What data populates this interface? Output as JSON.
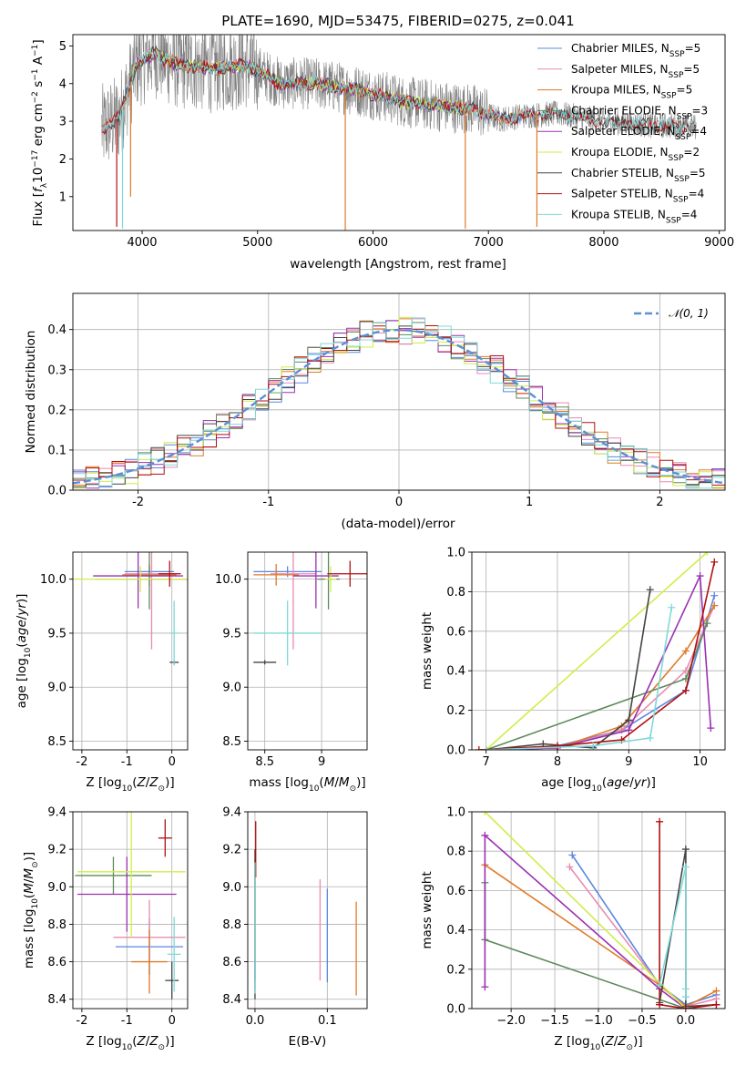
{
  "page_title": "PLATE=1690, MJD=53475, FIBERID=0275, z=0.041",
  "colors": {
    "Chabrier MILES": "#5b87e0",
    "Salpeter MILES": "#e88bb2",
    "Kroupa MILES": "#e07a2a",
    "Chabrier ELODIE": "#5d8a5d",
    "Salpeter ELODIE": "#9a30b0",
    "Kroupa ELODIE": "#cfee4a",
    "Chabrier STELIB": "#444444",
    "Salpeter STELIB": "#b01010",
    "Kroupa STELIB": "#7fd9d9",
    "data": "#808080",
    "normal": "#5b8fd8"
  },
  "chart_data": [
    {
      "id": "spectrum",
      "type": "line",
      "title": "PLATE=1690, MJD=53475, FIBERID=0275, z=0.041",
      "xlabel": "wavelength [Angstrom, rest frame]",
      "ylabel": "Flux [f_λ 10^-17 erg cm^-2 s^-1 A^-1]",
      "xlim": [
        3400,
        9050
      ],
      "ylim": [
        0.1,
        5.3
      ],
      "xticks": [
        "4000",
        "5000",
        "6000",
        "7000",
        "8000",
        "9000"
      ],
      "yticks": [
        "1",
        "2",
        "3",
        "4",
        "5"
      ],
      "grid": false,
      "legend_position": "top-right",
      "legend": [
        {
          "name": "Chabrier MILES, N_SSP=5",
          "base": "Chabrier MILES, N",
          "sub": "SSP",
          "tail": "=5"
        },
        {
          "name": "Salpeter MILES, N_SSP=5",
          "base": "Salpeter MILES, N",
          "sub": "SSP",
          "tail": "=5"
        },
        {
          "name": "Kroupa MILES, N_SSP=5",
          "base": "Kroupa MILES, N",
          "sub": "SSP",
          "tail": "=5"
        },
        {
          "name": "Chabrier ELODIE, N_SSP=3",
          "base": "Chabrier ELODIE, N",
          "sub": "SSP",
          "tail": "=3"
        },
        {
          "name": "Salpeter ELODIE, N_SSP=4",
          "base": "Salpeter ELODIE, N",
          "sub": "SSP",
          "tail": "=4"
        },
        {
          "name": "Kroupa ELODIE, N_SSP=2",
          "base": "Kroupa ELODIE, N",
          "sub": "SSP",
          "tail": "=2"
        },
        {
          "name": "Chabrier STELIB, N_SSP=5",
          "base": "Chabrier STELIB, N",
          "sub": "SSP",
          "tail": "=5"
        },
        {
          "name": "Salpeter STELIB, N_SSP=4",
          "base": "Salpeter STELIB, N",
          "sub": "SSP",
          "tail": "=4"
        },
        {
          "name": "Kroupa STELIB, N_SSP=4",
          "base": "Kroupa STELIB, N",
          "sub": "SSP",
          "tail": "=4"
        }
      ],
      "continuum": [
        [
          3650,
          2.8
        ],
        [
          3800,
          3.1
        ],
        [
          3950,
          4.5
        ],
        [
          4100,
          4.8
        ],
        [
          4300,
          4.5
        ],
        [
          4600,
          4.4
        ],
        [
          4900,
          4.5
        ],
        [
          5200,
          4.0
        ],
        [
          5500,
          4.0
        ],
        [
          5900,
          3.8
        ],
        [
          6300,
          3.5
        ],
        [
          6600,
          3.4
        ],
        [
          6900,
          3.3
        ],
        [
          7100,
          3.05
        ],
        [
          7300,
          3.15
        ],
        [
          7600,
          3.2
        ],
        [
          8000,
          3.0
        ],
        [
          8400,
          2.9
        ],
        [
          8800,
          2.85
        ]
      ],
      "data_range": [
        3650,
        8800
      ],
      "model_ranges": {
        "MILES": [
          3650,
          7420
        ],
        "ELODIE": [
          3900,
          6800
        ],
        "STELIB": [
          3650,
          8800
        ]
      },
      "spikes": [
        {
          "x": 3780,
          "y": 0.2
        },
        {
          "x": 3830,
          "y": 0.15
        },
        {
          "x": 3900,
          "y": 1.0
        },
        {
          "x": 5760,
          "y": 0.1
        },
        {
          "x": 6800,
          "y": 0.15
        },
        {
          "x": 7420,
          "y": 0.2
        }
      ]
    },
    {
      "id": "residuals",
      "type": "histogram",
      "xlabel": "(data-model)/error",
      "ylabel": "Normed distribution",
      "xlim": [
        -2.5,
        2.5
      ],
      "ylim": [
        0,
        0.49
      ],
      "xticks": [
        -2,
        -1,
        0,
        1,
        2
      ],
      "yticks": [
        0.0,
        0.1,
        0.2,
        0.3,
        0.4
      ],
      "grid": true,
      "legend_position": "top-right",
      "legend": [
        {
          "name": "𝒩(0, 1)"
        }
      ],
      "bin_width": 0.1,
      "bin_start": -2.5
    },
    {
      "id": "age_vs_Z",
      "type": "errorbar",
      "xlabel": "Z [log10(Z/Z⊙)]",
      "ylabel": "age [log10(age/yr)]",
      "xlim": [
        -2.2,
        0.35
      ],
      "ylim": [
        8.42,
        10.25
      ],
      "xticks": [
        -2,
        -1,
        0
      ],
      "yticks": [
        8.5,
        9.0,
        9.5,
        10.0
      ],
      "grid": true,
      "points": [
        {
          "model": "Chabrier MILES",
          "x": -0.5,
          "xerr": 0.55,
          "y": 10.07,
          "yerr": 0.05
        },
        {
          "model": "Salpeter MILES",
          "x": -0.45,
          "xerr": 0.6,
          "y": 10.05,
          "yerr": 0.7
        },
        {
          "model": "Kroupa MILES",
          "x": -0.5,
          "xerr": 0.6,
          "y": 10.04,
          "yerr": 0.1
        },
        {
          "model": "Chabrier ELODIE",
          "x": -0.5,
          "xerr": 1.2,
          "y": 10.0,
          "yerr": 0.28
        },
        {
          "model": "Salpeter ELODIE",
          "x": -0.75,
          "xerr": 1.0,
          "y": 10.03,
          "yerr": 0.3
        },
        {
          "model": "Kroupa ELODIE",
          "x": -0.7,
          "xerr": 1.5,
          "y": 10.0,
          "yerr": 0.12
        },
        {
          "model": "Chabrier STELIB",
          "x": 0.05,
          "xerr": 0.1,
          "y": 9.23,
          "yerr": 0.02
        },
        {
          "model": "Salpeter STELIB",
          "x": -0.05,
          "xerr": 0.25,
          "y": 10.05,
          "yerr": 0.12
        },
        {
          "model": "Kroupa STELIB",
          "x": 0.05,
          "xerr": 0.1,
          "y": 9.5,
          "yerr": 0.3
        }
      ]
    },
    {
      "id": "age_vs_mass",
      "type": "errorbar",
      "xlabel": "mass [log10(M/M⊙)]",
      "ylabel": "",
      "xlim": [
        8.35,
        9.4
      ],
      "ylim": [
        8.42,
        10.25
      ],
      "xticks": [
        8.5,
        9.0
      ],
      "yticks": [
        8.5,
        9.0,
        9.5,
        10.0
      ],
      "grid": true,
      "points": [
        {
          "model": "Chabrier MILES",
          "x": 8.7,
          "xerr": 0.3,
          "y": 10.07,
          "yerr": 0.05
        },
        {
          "model": "Salpeter MILES",
          "x": 8.75,
          "xerr": 0.2,
          "y": 10.05,
          "yerr": 0.7
        },
        {
          "model": "Kroupa MILES",
          "x": 8.6,
          "xerr": 0.2,
          "y": 10.04,
          "yerr": 0.1
        },
        {
          "model": "Chabrier ELODIE",
          "x": 9.06,
          "xerr": 0.1,
          "y": 10.0,
          "yerr": 0.28
        },
        {
          "model": "Salpeter ELODIE",
          "x": 8.95,
          "xerr": 0.2,
          "y": 10.03,
          "yerr": 0.3
        },
        {
          "model": "Kroupa ELODIE",
          "x": 9.08,
          "xerr": 0.05,
          "y": 10.0,
          "yerr": 0.12
        },
        {
          "model": "Chabrier STELIB",
          "x": 8.5,
          "xerr": 0.1,
          "y": 9.23,
          "yerr": 0.02
        },
        {
          "model": "Salpeter STELIB",
          "x": 9.25,
          "xerr": 0.2,
          "y": 10.05,
          "yerr": 0.12
        },
        {
          "model": "Kroupa STELIB",
          "x": 8.7,
          "xerr": 0.3,
          "y": 9.5,
          "yerr": 0.3
        }
      ]
    },
    {
      "id": "massweight_vs_age",
      "type": "line",
      "xlabel": "age [log10(age/yr)]",
      "ylabel": "mass weight",
      "xlim": [
        6.8,
        10.35
      ],
      "ylim": [
        0,
        1
      ],
      "xticks": [
        7,
        8,
        9,
        10
      ],
      "yticks": [
        0.0,
        0.2,
        0.4,
        0.6,
        0.8,
        1.0
      ],
      "grid": true,
      "series": [
        {
          "model": "Chabrier MILES",
          "x": [
            7.0,
            8.0,
            8.9,
            9.8,
            10.2
          ],
          "y": [
            0.0,
            0.02,
            0.1,
            0.3,
            0.78
          ]
        },
        {
          "model": "Salpeter MILES",
          "x": [
            7.0,
            8.0,
            8.9,
            9.8,
            10.2
          ],
          "y": [
            0.0,
            0.01,
            0.1,
            0.4,
            0.73
          ]
        },
        {
          "model": "Kroupa MILES",
          "x": [
            7.0,
            8.0,
            8.9,
            9.8,
            10.2
          ],
          "y": [
            0.0,
            0.01,
            0.12,
            0.5,
            0.73
          ]
        },
        {
          "model": "Chabrier ELODIE",
          "x": [
            7.0,
            9.8,
            10.1
          ],
          "y": [
            0.0,
            0.36,
            0.64
          ]
        },
        {
          "model": "Salpeter ELODIE",
          "x": [
            7.0,
            8.0,
            9.0,
            10.0,
            10.15
          ],
          "y": [
            0.0,
            0.01,
            0.1,
            0.88,
            0.11
          ]
        },
        {
          "model": "Kroupa ELODIE",
          "x": [
            7.0,
            10.1
          ],
          "y": [
            0.0,
            1.0
          ]
        },
        {
          "model": "Chabrier STELIB",
          "x": [
            7.0,
            7.8,
            8.5,
            9.0,
            9.3
          ],
          "y": [
            0.0,
            0.03,
            0.01,
            0.15,
            0.81
          ]
        },
        {
          "model": "Salpeter STELIB",
          "x": [
            6.9,
            8.0,
            8.9,
            9.8,
            10.2
          ],
          "y": [
            0.0,
            0.02,
            0.05,
            0.3,
            0.95
          ]
        },
        {
          "model": "Kroupa STELIB",
          "x": [
            7.0,
            8.5,
            9.3,
            9.6
          ],
          "y": [
            0.0,
            0.02,
            0.06,
            0.72
          ]
        }
      ]
    },
    {
      "id": "mass_vs_Z",
      "type": "errorbar",
      "xlabel": "Z [log10(Z/Z⊙)]",
      "ylabel": "mass [log10(M/M⊙)]",
      "xlim": [
        -2.2,
        0.35
      ],
      "ylim": [
        8.35,
        9.4
      ],
      "xticks": [
        -2,
        -1,
        0
      ],
      "yticks": [
        8.4,
        8.6,
        8.8,
        9.0,
        9.2,
        9.4
      ],
      "grid": true,
      "points": [
        {
          "model": "Chabrier MILES",
          "x": -0.5,
          "xerr": 0.75,
          "y": 8.68,
          "yerr": 0.15
        },
        {
          "model": "Salpeter MILES",
          "x": -0.5,
          "xerr": 0.8,
          "y": 8.73,
          "yerr": 0.2
        },
        {
          "model": "Kroupa MILES",
          "x": -0.5,
          "xerr": 0.4,
          "y": 8.6,
          "yerr": 0.17
        },
        {
          "model": "Chabrier ELODIE",
          "x": -1.3,
          "xerr": 0.85,
          "y": 9.06,
          "yerr": 0.1
        },
        {
          "model": "Salpeter ELODIE",
          "x": -1.0,
          "xerr": 1.1,
          "y": 8.96,
          "yerr": 0.2
        },
        {
          "model": "Kroupa ELODIE",
          "x": -0.9,
          "xerr": 1.2,
          "y": 9.08,
          "yerr": 0.35
        },
        {
          "model": "Chabrier STELIB",
          "x": 0.0,
          "xerr": 0.15,
          "y": 8.5,
          "yerr": 0.1
        },
        {
          "model": "Salpeter STELIB",
          "x": -0.15,
          "xerr": 0.15,
          "y": 9.26,
          "yerr": 0.1
        },
        {
          "model": "Kroupa STELIB",
          "x": 0.05,
          "xerr": 0.15,
          "y": 8.64,
          "yerr": 0.2
        }
      ]
    },
    {
      "id": "mass_vs_ebv",
      "type": "errorbar",
      "xlabel": "E(B-V)",
      "ylabel": "",
      "xlim": [
        -0.01,
        0.155
      ],
      "ylim": [
        8.35,
        9.4
      ],
      "xticks": [
        "0.0",
        "0.1"
      ],
      "yticks": [
        8.4,
        8.6,
        8.8,
        9.0,
        9.2,
        9.4
      ],
      "grid": true,
      "points": [
        {
          "model": "Chabrier MILES",
          "x": 0.1,
          "xerr": 0,
          "y": 8.74,
          "yerr": 0.25
        },
        {
          "model": "Salpeter MILES",
          "x": 0.09,
          "xerr": 0,
          "y": 8.77,
          "yerr": 0.27
        },
        {
          "model": "Kroupa MILES",
          "x": 0.14,
          "xerr": 0,
          "y": 8.67,
          "yerr": 0.25
        },
        {
          "model": "Chabrier ELODIE",
          "x": 0.0,
          "xerr": 0,
          "y": 8.8,
          "yerr": 0.35
        },
        {
          "model": "Salpeter ELODIE",
          "x": 0.0,
          "xerr": 0,
          "y": 8.8,
          "yerr": 0.3
        },
        {
          "model": "Kroupa ELODIE",
          "x": 0.0,
          "xerr": 0,
          "y": 8.9,
          "yerr": 0.3
        },
        {
          "model": "Chabrier STELIB",
          "x": 0.0,
          "xerr": 0,
          "y": 8.8,
          "yerr": 0.4
        },
        {
          "model": "Salpeter STELIB",
          "x": 0.001,
          "xerr": 0,
          "y": 9.2,
          "yerr": 0.15
        },
        {
          "model": "Kroupa STELIB",
          "x": 0.0,
          "xerr": 0,
          "y": 8.78,
          "yerr": 0.35
        }
      ]
    },
    {
      "id": "massweight_vs_Z",
      "type": "line",
      "xlabel": "Z [log10(Z/Z⊙)]",
      "ylabel": "mass weight",
      "xlim": [
        -2.45,
        0.45
      ],
      "ylim": [
        0,
        1
      ],
      "xticks": [
        "−2.0",
        "−1.5",
        "−1.0",
        "−0.5",
        "0.0"
      ],
      "xtick_values": [
        -2.0,
        -1.5,
        -1.0,
        -0.5,
        0.0
      ],
      "yticks": [
        0.0,
        0.2,
        0.4,
        0.6,
        0.8,
        1.0
      ],
      "grid": true,
      "series": [
        {
          "model": "Chabrier MILES",
          "x": [
            -1.3,
            -0.3,
            0.0,
            0.35
          ],
          "y": [
            0.78,
            0.12,
            0.02,
            0.07
          ]
        },
        {
          "model": "Salpeter MILES",
          "x": [
            -1.33,
            -0.3,
            0.0,
            0.35
          ],
          "y": [
            0.72,
            0.12,
            0.01,
            0.05
          ]
        },
        {
          "model": "Kroupa MILES",
          "x": [
            -2.3,
            -0.3,
            0.0,
            0.35
          ],
          "y": [
            0.73,
            0.12,
            0.01,
            0.09
          ]
        },
        {
          "model": "Chabrier ELODIE",
          "x": [
            -2.3,
            -2.3,
            0.0
          ],
          "y": [
            0.64,
            0.35,
            0.0
          ]
        },
        {
          "model": "Salpeter ELODIE",
          "x": [
            -2.3,
            -2.3,
            -0.3,
            0.0
          ],
          "y": [
            0.11,
            0.88,
            0.1,
            0.0
          ]
        },
        {
          "model": "Kroupa ELODIE",
          "x": [
            -2.3,
            0.0
          ],
          "y": [
            1.0,
            0.0
          ]
        },
        {
          "model": "Chabrier STELIB",
          "x": [
            -0.3,
            0.0,
            0.0,
            0.35
          ],
          "y": [
            0.03,
            0.81,
            0.01,
            0.02
          ]
        },
        {
          "model": "Salpeter STELIB",
          "x": [
            -0.3,
            -0.3,
            0.0,
            0.35
          ],
          "y": [
            0.95,
            0.02,
            0.0,
            0.02
          ]
        },
        {
          "model": "Kroupa STELIB",
          "x": [
            -0.3,
            0.0,
            0.0,
            0.0
          ],
          "y": [
            0.12,
            0.72,
            0.1,
            0.06
          ]
        }
      ]
    }
  ]
}
